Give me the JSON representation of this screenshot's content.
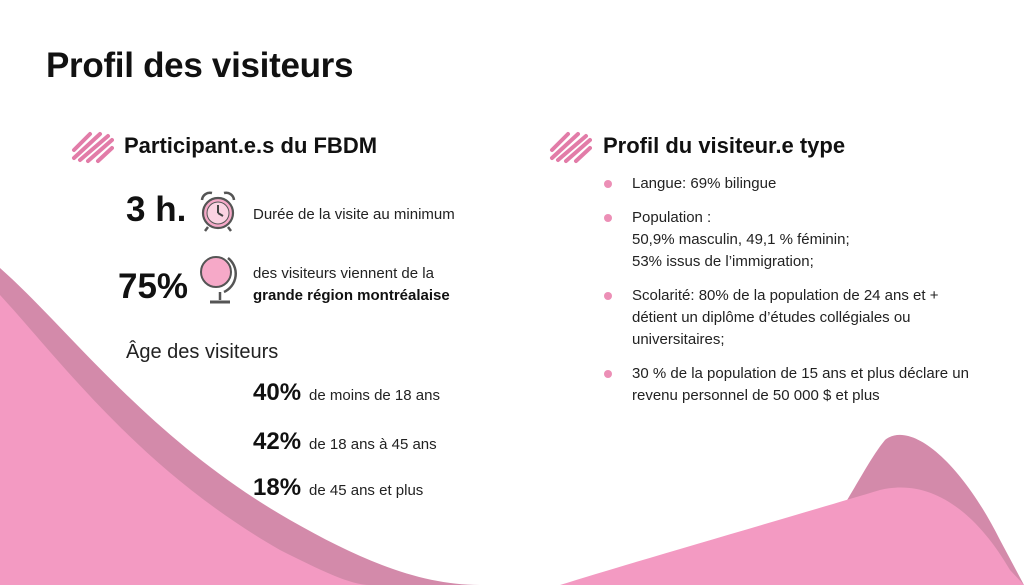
{
  "slide": {
    "title": "Profil des visiteurs",
    "colors": {
      "pink_main": "#f39ac2",
      "pink_dark": "#d689ac",
      "bullet": "#ec8fb6"
    }
  },
  "left": {
    "heading": "Participant.e.s du FBDM",
    "stats": [
      {
        "value": "3 h.",
        "icon": "alarm-clock-icon",
        "text": "Durée de la visite au minimum"
      },
      {
        "value": "75%",
        "icon": "globe-icon",
        "text": "des visiteurs viennent de la",
        "text_bold": "grande région montréalaise"
      }
    ],
    "age": {
      "title": "Âge des visiteurs",
      "rows": [
        {
          "pct": "40%",
          "label": "de moins de 18 ans"
        },
        {
          "pct": "42%",
          "label": "de 18 ans à 45 ans"
        },
        {
          "pct": "18%",
          "label": "de 45 ans et plus"
        }
      ]
    }
  },
  "right": {
    "heading": "Profil du visiteur.e type",
    "items": [
      {
        "lines": [
          "Langue: 69% bilingue"
        ]
      },
      {
        "lines": [
          "Population :",
          "50,9% masculin, 49,1 % féminin;",
          "53% issus de l’immigration;"
        ]
      },
      {
        "lines": [
          "Scolarité: 80% de la population de 24 ans et + détient un diplôme d’études collégiales ou universitaires;"
        ]
      },
      {
        "lines": [
          "30 % de la population de 15 ans et plus déclare un revenu personnel de 50 000 $ et plus"
        ]
      }
    ]
  }
}
